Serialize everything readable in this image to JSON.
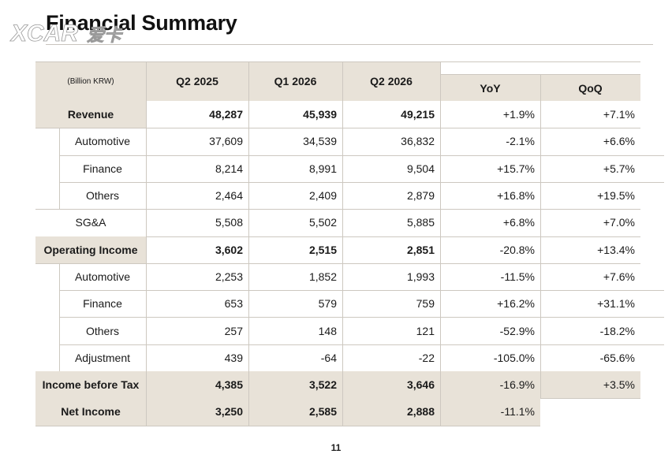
{
  "title": "Financial Summary",
  "watermark": "XCAR 爱卡",
  "table": {
    "unit": "(Billion KRW)",
    "columns": [
      "Q2 2025",
      "Q1 2026",
      "Q2 2026",
      "YoY",
      "QoQ"
    ],
    "rows": [
      {
        "label": "Revenue",
        "values": [
          "48,287",
          "45,939",
          "49,215",
          "+1.9%",
          "+7.1%"
        ]
      },
      {
        "label": "Automotive",
        "values": [
          "37,609",
          "34,539",
          "36,832",
          "-2.1%",
          "+6.6%"
        ]
      },
      {
        "label": "Finance",
        "values": [
          "8,214",
          "8,991",
          "9,504",
          "+15.7%",
          "+5.7%"
        ]
      },
      {
        "label": "Others",
        "values": [
          "2,464",
          "2,409",
          "2,879",
          "+16.8%",
          "+19.5%"
        ]
      },
      {
        "label": "SG&A",
        "values": [
          "5,508",
          "5,502",
          "5,885",
          "+6.8%",
          "+7.0%"
        ]
      },
      {
        "label": "Operating Income",
        "values": [
          "3,602",
          "2,515",
          "2,851",
          "-20.8%",
          "+13.4%"
        ]
      },
      {
        "label": "Automotive",
        "values": [
          "2,253",
          "1,852",
          "1,993",
          "-11.5%",
          "+7.6%"
        ]
      },
      {
        "label": "Finance",
        "values": [
          "653",
          "579",
          "759",
          "+16.2%",
          "+31.1%"
        ]
      },
      {
        "label": "Others",
        "values": [
          "257",
          "148",
          "121",
          "-52.9%",
          "-18.2%"
        ]
      },
      {
        "label": "Adjustment",
        "values": [
          "439",
          "-64",
          "-22",
          "-105.0%",
          "-65.6%"
        ]
      },
      {
        "label": "Income before Tax",
        "values": [
          "4,385",
          "3,522",
          "3,646",
          "-16.9%",
          "+3.5%"
        ]
      },
      {
        "label": "Net Income",
        "values": [
          "3,250",
          "2,585",
          "2,888",
          "-11.1%",
          ""
        ]
      }
    ]
  },
  "page_number": "11",
  "colors": {
    "header_bg": "#e8e2d8",
    "grid": "#cdc8c0",
    "logo": "#ffffff"
  }
}
